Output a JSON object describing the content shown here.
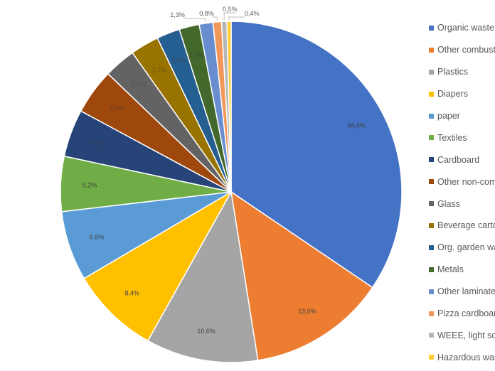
{
  "chart_data": {
    "type": "pie",
    "start_angle": "12 o'clock, clockwise",
    "legend_position": "right",
    "slices": [
      {
        "label": "Organic waste",
        "value": 34.4,
        "display": "34,4%",
        "color": "#4472C4"
      },
      {
        "label": "Other combust",
        "value": 13.0,
        "display": "13,0%",
        "color": "#ED7D31"
      },
      {
        "label": "Plastics",
        "value": 10.6,
        "display": "10,6%",
        "color": "#A5A5A5"
      },
      {
        "label": "Diapers",
        "value": 8.4,
        "display": "8,4%",
        "color": "#FFC000"
      },
      {
        "label": "paper",
        "value": 6.6,
        "display": "6,6%",
        "color": "#5B9BD5"
      },
      {
        "label": "Textiles",
        "value": 5.2,
        "display": "5,2%",
        "color": "#70AD47"
      },
      {
        "label": "Cardboard",
        "value": 4.5,
        "display": "4,5%",
        "color": "#264478"
      },
      {
        "label": "Other non-com",
        "value": 4.3,
        "display": "4,3%",
        "color": "#9E480E"
      },
      {
        "label": "Glass",
        "value": 3.0,
        "display": "3,0%",
        "color": "#636363"
      },
      {
        "label": "Beverage carto",
        "value": 2.7,
        "display": "2,7%",
        "color": "#997300"
      },
      {
        "label": "Org. garden wa",
        "value": 2.2,
        "display": "2,2%",
        "color": "#255E91"
      },
      {
        "label": "Metals",
        "value": 1.9,
        "display": "1,9%",
        "color": "#43682B"
      },
      {
        "label": "Other laminate",
        "value": 1.3,
        "display": "1,3%",
        "color": "#698ED0"
      },
      {
        "label": "Pizza cardboard",
        "value": 0.8,
        "display": "0,8%",
        "color": "#F1975A"
      },
      {
        "label": "WEEE, light sou",
        "value": 0.5,
        "display": "0,5%",
        "color": "#B7B7B7"
      },
      {
        "label": "Hazardous was",
        "value": 0.4,
        "display": "0,4%",
        "color": "#FFCD33"
      }
    ]
  }
}
